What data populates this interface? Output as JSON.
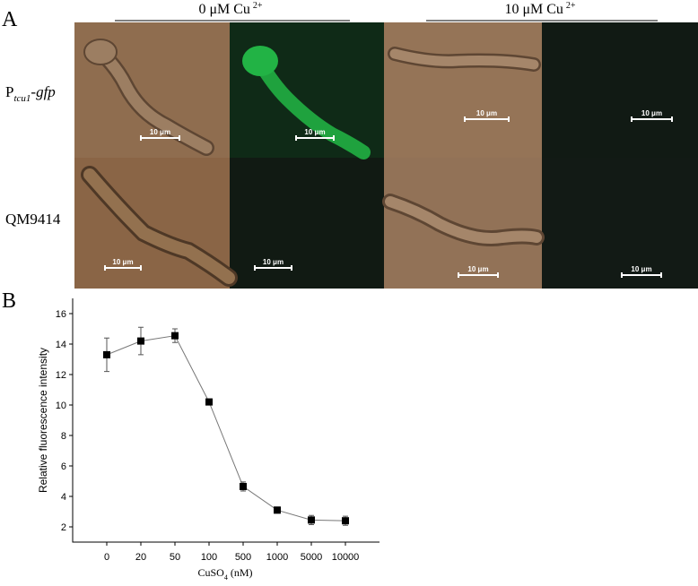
{
  "panel_a": {
    "label": "A",
    "conditions": [
      {
        "text": "0 μM Cu",
        "superscript": "2+"
      },
      {
        "text": "10 μM Cu",
        "superscript": "2+"
      }
    ],
    "rows": [
      {
        "text": "P",
        "subscript": "tcu1",
        "suffix": "-gfp"
      },
      {
        "text": "QM9414"
      }
    ],
    "images": [
      {
        "scale_bar": "10 μm"
      },
      {
        "scale_bar": "10 μm"
      },
      {
        "scale_bar": "10 μm"
      },
      {
        "scale_bar": "10 μm"
      },
      {
        "scale_bar": "10 μm"
      },
      {
        "scale_bar": "10 μm"
      },
      {
        "scale_bar": "10 μm"
      },
      {
        "scale_bar": "10 μm"
      }
    ]
  },
  "chart_data": {
    "type": "line",
    "label": "B",
    "y_label": "Relative fluorescence intensity",
    "x_label": {
      "text": "CuSO",
      "subscript": "4",
      "suffix": " (nM)"
    },
    "categories": [
      "0",
      "20",
      "50",
      "100",
      "500",
      "1000",
      "5000",
      "10000"
    ],
    "values": [
      13.3,
      14.2,
      14.55,
      10.2,
      4.65,
      3.1,
      2.45,
      2.4
    ],
    "errors": [
      1.1,
      0.9,
      0.45,
      0.2,
      0.3,
      0.2,
      0.3,
      0.3
    ],
    "color": "#000000",
    "ylim": [
      1,
      17
    ],
    "yticks": [
      2,
      4,
      6,
      8,
      10,
      12,
      14,
      16
    ]
  }
}
